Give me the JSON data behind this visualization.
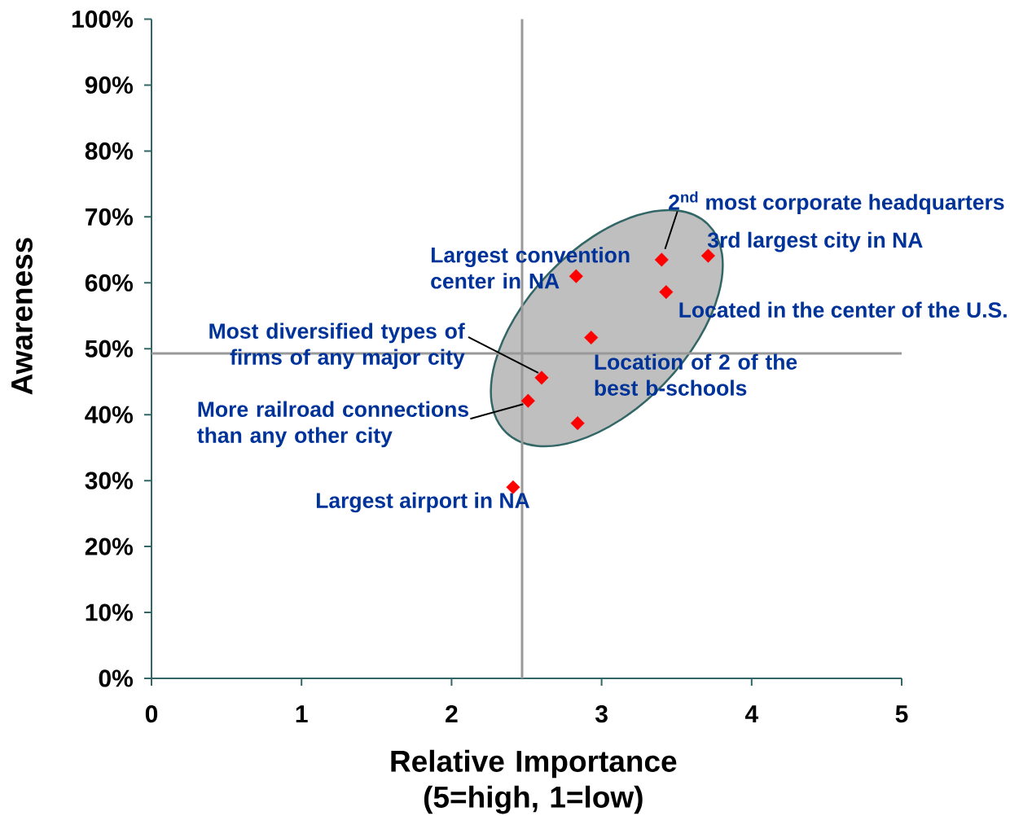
{
  "chart_data": {
    "type": "scatter",
    "xlabel": "Relative Importance (5=high, 1=low)",
    "ylabel": "Awareness",
    "x": [
      2.41,
      2.51,
      2.6,
      2.83,
      2.84,
      2.93,
      3.4,
      3.43,
      3.71
    ],
    "values": [
      29.0,
      42.1,
      45.6,
      61.0,
      38.7,
      51.7,
      63.5,
      58.6,
      64.1
    ],
    "color": "#ff0000",
    "marker": "diamond",
    "xlim": [
      0,
      5
    ],
    "ylim": [
      0,
      100
    ],
    "xticks": [
      0,
      1,
      2,
      3,
      4,
      5
    ],
    "yticks": [
      {
        "value": 0,
        "label": "0%"
      },
      {
        "value": 10,
        "label": "10%"
      },
      {
        "value": 20,
        "label": "20%"
      },
      {
        "value": 30,
        "label": "30%"
      },
      {
        "value": 40,
        "label": "40%"
      },
      {
        "value": 50,
        "label": "50%"
      },
      {
        "value": 60,
        "label": "60%"
      },
      {
        "value": 70,
        "label": "70%"
      },
      {
        "value": 80,
        "label": "80%"
      },
      {
        "value": 90,
        "label": "90%"
      },
      {
        "value": 100,
        "label": "100%"
      }
    ],
    "ref_lines": [
      {
        "axis": "x",
        "value": 2.47,
        "color": "#999999"
      },
      {
        "axis": "y",
        "value": 49.3,
        "color": "#999999"
      }
    ],
    "annotations": [
      {
        "text": "2$^{nd}$ most corporate headquarters",
        "x": 3.4,
        "y": 63.5
      },
      {
        "text": "3rd largest city in NA",
        "x": 3.71,
        "y": 64.1
      },
      {
        "text": "Largest convention center in NA",
        "x": 2.83,
        "y": 61.0
      },
      {
        "text": "Located in the center of the U.S.",
        "x": 3.43,
        "y": 58.6
      },
      {
        "text": "Most diversified types of firms of any major city",
        "x": 2.6,
        "y": 45.6
      },
      {
        "text": "Location of 2 of the best b-schools",
        "x": 2.93,
        "y": 51.7
      },
      {
        "text": "More railroad connections than any other city",
        "x": 2.51,
        "y": 42.1
      },
      {
        "text": "Largest airport in NA",
        "x": 2.41,
        "y": 29.0
      }
    ]
  }
}
